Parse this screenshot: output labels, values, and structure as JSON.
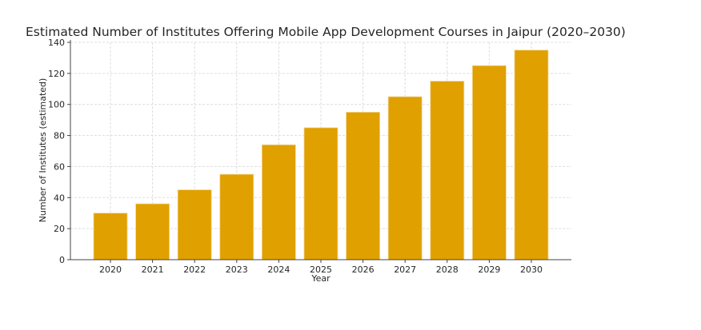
{
  "chart_data": {
    "type": "bar",
    "title": "Estimated Number of Institutes Offering Mobile App Development Courses in Jaipur (2020–2030)",
    "xlabel": "Year",
    "ylabel": "Number of Institutes (estimated)",
    "categories": [
      "2020",
      "2021",
      "2022",
      "2023",
      "2024",
      "2025",
      "2026",
      "2027",
      "2028",
      "2029",
      "2030"
    ],
    "values": [
      30,
      36,
      45,
      55,
      74,
      85,
      95,
      105,
      115,
      125,
      135
    ],
    "ylim": [
      0,
      140
    ],
    "yticks": [
      "0",
      "20",
      "40",
      "60",
      "80",
      "100",
      "120",
      "140"
    ],
    "grid": true,
    "bar_color": "#E0A000"
  }
}
